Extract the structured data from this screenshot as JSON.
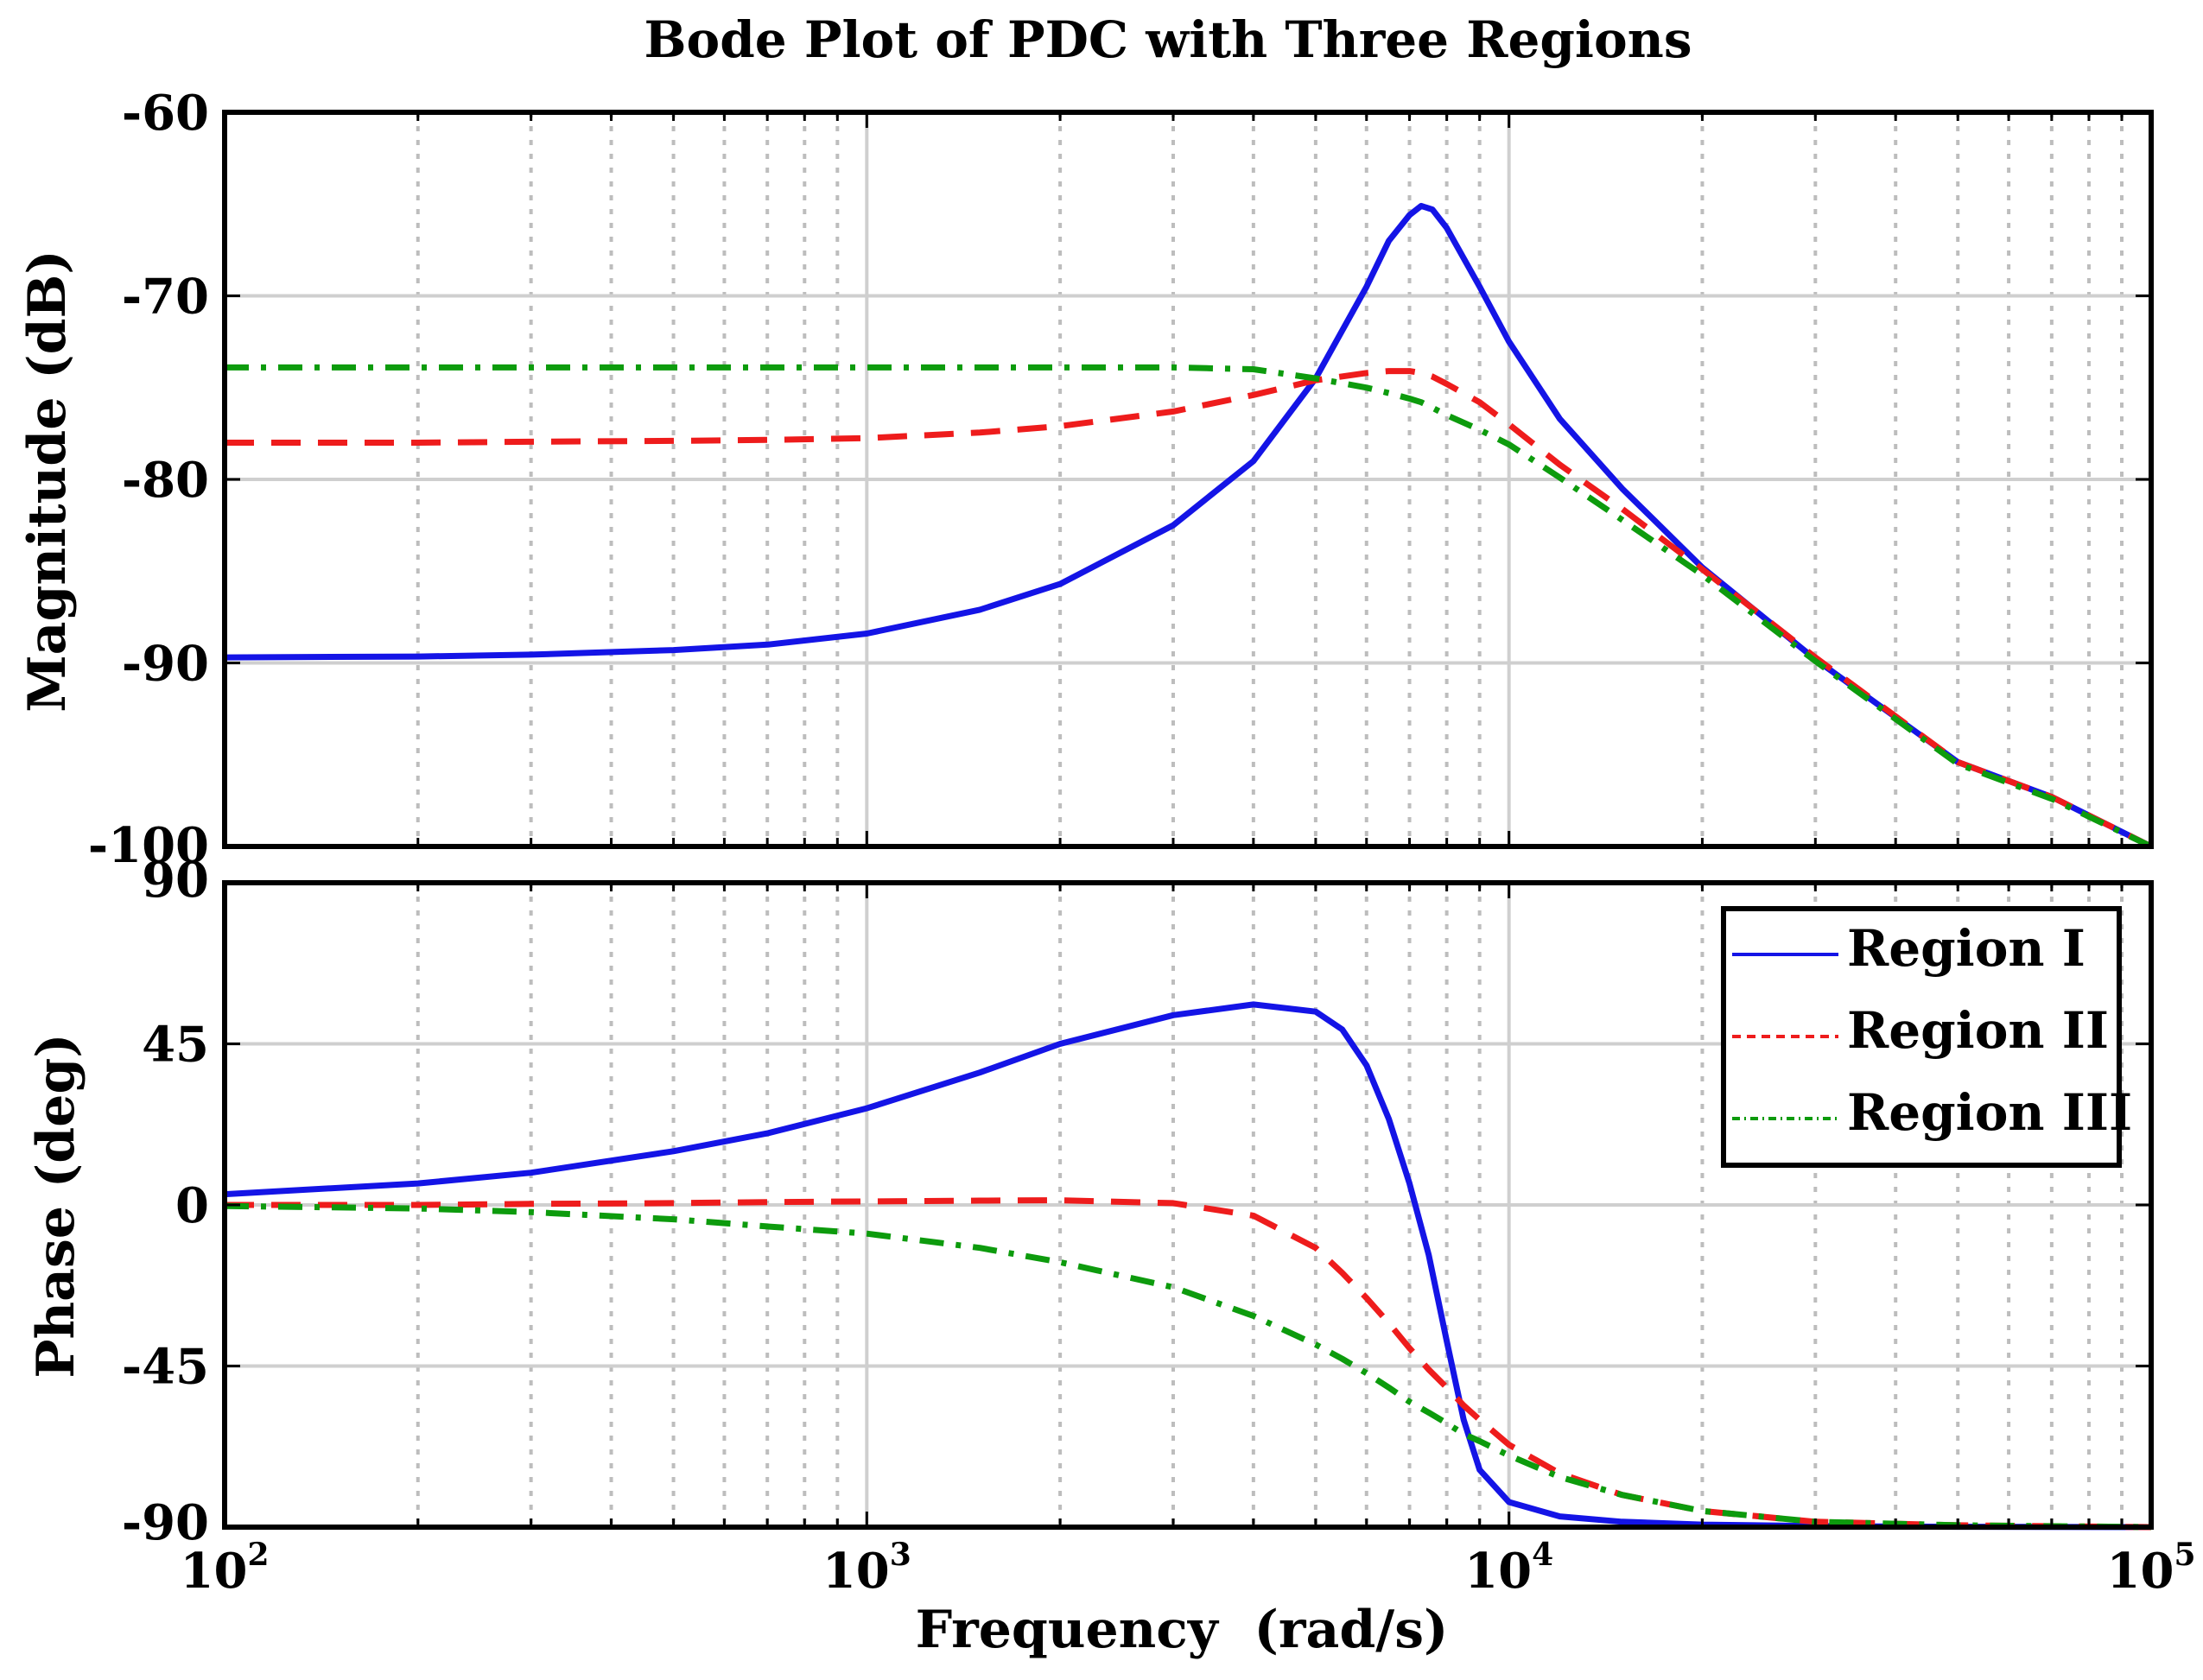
{
  "chart_data": {
    "type": "line",
    "title": "Bode Plot of PDC with Three Regions",
    "xlabel": "Frequency  (rad/s)",
    "xscale": "log",
    "xlim": [
      100,
      100000
    ],
    "x_tick_labels": [
      {
        "value": 100,
        "base": "10",
        "exp": "2"
      },
      {
        "value": 1000,
        "base": "10",
        "exp": "3"
      },
      {
        "value": 10000,
        "base": "10",
        "exp": "4"
      },
      {
        "value": 100000,
        "base": "10",
        "exp": "5"
      }
    ],
    "grid": true,
    "legend_position": "top-right of phase panel",
    "series_styles": [
      {
        "name": "Region I",
        "color": "#1414e6",
        "dash": "solid"
      },
      {
        "name": "Region II",
        "color": "#ee1c1c",
        "dash": "dashed"
      },
      {
        "name": "Region III",
        "color": "#0d9b0d",
        "dash": "dash-dot"
      }
    ],
    "panels": [
      {
        "id": "magnitude",
        "ylabel": "Magnitude (dB)",
        "ylim": [
          -100,
          -60
        ],
        "yticks": [
          -100,
          -90,
          -80,
          -70,
          -60
        ],
        "ytick_labels": [
          "-100",
          "-90",
          "-80",
          "-70",
          "-60"
        ],
        "x": [
          100,
          200,
          300,
          500,
          700,
          1000,
          1500,
          2000,
          3000,
          4000,
          5000,
          6000,
          6500,
          7000,
          7300,
          7600,
          8000,
          9000,
          10000,
          12000,
          15000,
          20000,
          30000,
          50000,
          70000,
          100000
        ],
        "series": [
          {
            "name": "Region I",
            "values": [
              -89.7,
              -89.65,
              -89.55,
              -89.3,
              -89.0,
              -88.4,
              -87.1,
              -85.7,
              -82.5,
              -79.0,
              -74.5,
              -69.5,
              -67.0,
              -65.6,
              -65.1,
              -65.3,
              -66.3,
              -69.5,
              -72.5,
              -76.7,
              -80.5,
              -84.8,
              -89.8,
              -95.4,
              -97.3,
              -100.0
            ]
          },
          {
            "name": "Region II",
            "values": [
              -78.0,
              -78.0,
              -77.95,
              -77.9,
              -77.85,
              -77.75,
              -77.45,
              -77.1,
              -76.3,
              -75.4,
              -74.6,
              -74.2,
              -74.1,
              -74.1,
              -74.2,
              -74.4,
              -74.8,
              -75.8,
              -77.0,
              -79.2,
              -81.6,
              -84.9,
              -89.7,
              -95.4,
              -97.3,
              -100.0
            ]
          },
          {
            "name": "Region III",
            "values": [
              -73.9,
              -73.9,
              -73.9,
              -73.9,
              -73.9,
              -73.9,
              -73.9,
              -73.9,
              -73.9,
              -74.0,
              -74.5,
              -75.0,
              -75.3,
              -75.6,
              -75.8,
              -76.1,
              -76.5,
              -77.3,
              -78.1,
              -79.9,
              -82.2,
              -85.2,
              -89.9,
              -95.5,
              -97.4,
              -100.0
            ]
          }
        ]
      },
      {
        "id": "phase",
        "ylabel": "Phase (deg)",
        "ylim": [
          -90,
          90
        ],
        "yticks": [
          -90,
          -45,
          0,
          45,
          90
        ],
        "ytick_labels": [
          "-90",
          "-45",
          "0",
          "45",
          "90"
        ],
        "x": [
          100,
          200,
          300,
          500,
          700,
          1000,
          1500,
          2000,
          3000,
          4000,
          5000,
          5500,
          6000,
          6500,
          7000,
          7500,
          8000,
          8500,
          9000,
          10000,
          12000,
          15000,
          20000,
          30000,
          50000,
          100000
        ],
        "series": [
          {
            "name": "Region I",
            "values": [
              3,
              6,
              9,
              15,
              20,
              27,
              37,
              45,
              53,
              56,
              54,
              49,
              39,
              24,
              6,
              -14,
              -38,
              -60,
              -74,
              -83,
              -87,
              -88.5,
              -89.3,
              -89.7,
              -89.9,
              -90
            ]
          },
          {
            "name": "Region II",
            "values": [
              0,
              0,
              0.3,
              0.5,
              0.8,
              1.0,
              1.2,
              1.3,
              0.5,
              -3,
              -12,
              -19,
              -26,
              -33,
              -40,
              -46,
              -51,
              -56,
              -60,
              -67,
              -75,
              -81,
              -85.5,
              -88.5,
              -89.5,
              -90
            ]
          },
          {
            "name": "Region III",
            "values": [
              -0.3,
              -1,
              -2,
              -4,
              -6,
              -8,
              -12,
              -16,
              -23,
              -31,
              -39,
              -43,
              -47,
              -51,
              -55,
              -58,
              -61,
              -64,
              -66,
              -70,
              -76,
              -81,
              -85.5,
              -88.5,
              -89.5,
              -90
            ]
          }
        ]
      }
    ]
  }
}
